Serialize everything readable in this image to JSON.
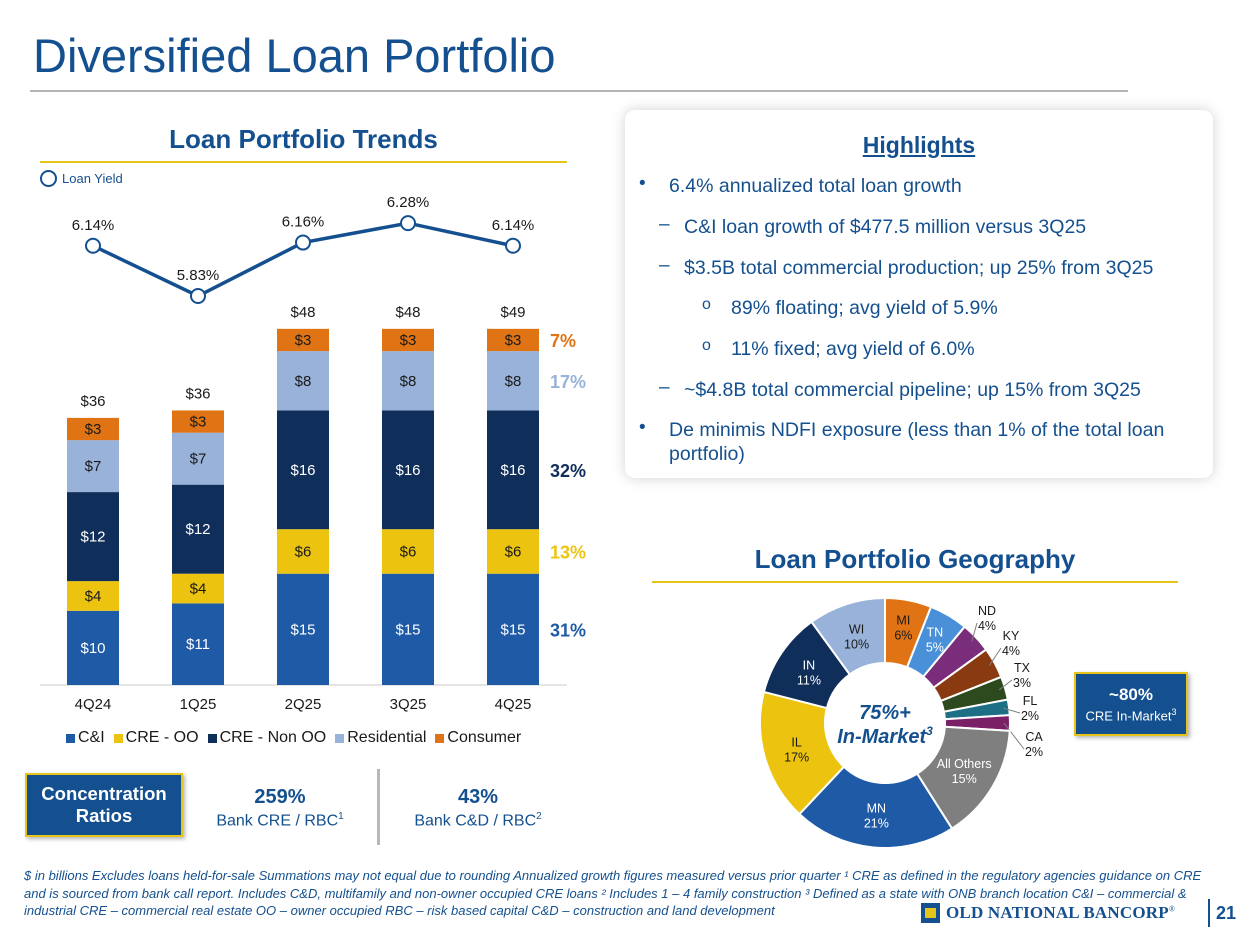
{
  "title": "Diversified Loan Portfolio",
  "trends": {
    "title": "Loan Portfolio Trends",
    "yield_legend": "Loan Yield",
    "mix_labels": [
      "7%",
      "17%",
      "32%",
      "13%",
      "31%"
    ]
  },
  "highlights": {
    "title": "Highlights",
    "items": [
      "6.4% annualized total loan growth",
      "C&I loan growth of $477.5 million versus 3Q25",
      "$3.5B total commercial production; up 25% from 3Q25",
      "89% floating; avg yield of 5.9%",
      "11% fixed; avg yield of 6.0%",
      "~$4.8B total commercial pipeline; up 15% from 3Q25",
      "De minimis NDFI exposure (less than 1% of the total loan portfolio)"
    ],
    "markers": [
      "•",
      "–",
      "–",
      "o",
      "o",
      "–",
      "•"
    ]
  },
  "concentration": {
    "label": "Concentration Ratios",
    "cre_value": "259%",
    "cre_label": "Bank CRE / RBC",
    "cre_sup": "1",
    "cd_value": "43%",
    "cd_label": "Bank C&D / RBC",
    "cd_sup": "2"
  },
  "geography": {
    "title": "Loan Portfolio Geography",
    "center_line1": "75%+",
    "center_line2": "In-Market",
    "center_sup": "3",
    "cre_box_value": "~80%",
    "cre_box_label": "CRE In-Market",
    "cre_box_sup": "3"
  },
  "chart_data": [
    {
      "type": "bar",
      "stacked": true,
      "title": "Loan Portfolio Trends",
      "categories": [
        "4Q24",
        "1Q25",
        "2Q25",
        "3Q25",
        "4Q25"
      ],
      "series": [
        {
          "name": "C&I",
          "color": "#1f5aa6",
          "values": [
            10,
            11,
            15,
            15,
            15
          ],
          "labels": [
            "$10",
            "$11",
            "$15",
            "$15",
            "$15"
          ]
        },
        {
          "name": "CRE - OO",
          "color": "#ecc40f",
          "values": [
            4,
            4,
            6,
            6,
            6
          ],
          "labels": [
            "$4",
            "$4",
            "$6",
            "$6",
            "$6"
          ]
        },
        {
          "name": "CRE - Non OO",
          "color": "#102e5a",
          "values": [
            12,
            12,
            16,
            16,
            16
          ],
          "labels": [
            "$12",
            "$12",
            "$16",
            "$16",
            "$16"
          ]
        },
        {
          "name": "Residential",
          "color": "#98b2d9",
          "values": [
            7,
            7,
            8,
            8,
            8
          ],
          "labels": [
            "$7",
            "$7",
            "$8",
            "$8",
            "$8"
          ]
        },
        {
          "name": "Consumer",
          "color": "#e07314",
          "values": [
            3,
            3,
            3,
            3,
            3
          ],
          "labels": [
            "$3",
            "$3",
            "$3",
            "$3",
            "$3"
          ]
        }
      ],
      "totals": [
        "$36",
        "$36",
        "$48",
        "$48",
        "$49"
      ],
      "total_values": [
        36,
        36,
        48,
        48,
        49
      ]
    },
    {
      "type": "line",
      "title": "Loan Yield",
      "categories": [
        "4Q24",
        "1Q25",
        "2Q25",
        "3Q25",
        "4Q25"
      ],
      "values": [
        6.14,
        5.83,
        6.16,
        6.28,
        6.14
      ],
      "labels": [
        "6.14%",
        "5.83%",
        "6.16%",
        "6.28%",
        "6.14%"
      ],
      "color": "#14508f"
    },
    {
      "type": "pie",
      "donut": true,
      "title": "Loan Portfolio Geography",
      "slices": [
        {
          "name": "MI",
          "value": 6,
          "label": "6%",
          "color": "#e07314"
        },
        {
          "name": "TN",
          "value": 5,
          "label": "5%",
          "color": "#4a90d9"
        },
        {
          "name": "ND",
          "value": 4,
          "label": "4%",
          "color": "#7a2d7a"
        },
        {
          "name": "KY",
          "value": 4,
          "label": "4%",
          "color": "#8a3a10"
        },
        {
          "name": "TX",
          "value": 3,
          "label": "3%",
          "color": "#2d4a1e"
        },
        {
          "name": "FL",
          "value": 2,
          "label": "2%",
          "color": "#1d6f86"
        },
        {
          "name": "CA",
          "value": 2,
          "label": "2%",
          "color": "#7a2067"
        },
        {
          "name": "All Others",
          "value": 15,
          "label": "15%",
          "color": "#7f7f7f"
        },
        {
          "name": "MN",
          "value": 21,
          "label": "21%",
          "color": "#1f5aa6"
        },
        {
          "name": "IL",
          "value": 17,
          "label": "17%",
          "color": "#ecc40f"
        },
        {
          "name": "IN",
          "value": 11,
          "label": "11%",
          "color": "#102e5a"
        },
        {
          "name": "WI",
          "value": 10,
          "label": "10%",
          "color": "#98b2d9"
        }
      ]
    }
  ],
  "footnote": "$ in billions   Excludes loans held-for-sale   Summations may not equal due to rounding   Annualized growth figures measured versus prior quarter   ¹ CRE as defined in the regulatory agencies guidance on CRE and is sourced from bank call report. Includes C&D, multifamily and non-owner occupied CRE loans   ² Includes 1 – 4 family construction   ³ Defined as a state with ONB branch location   C&I – commercial & industrial   CRE – commercial real estate   OO – owner occupied   RBC – risk based capital   C&D – construction and land development",
  "logo_text": "OLD NATIONAL BANCORP",
  "logo_mark": "®",
  "page_number": "21"
}
